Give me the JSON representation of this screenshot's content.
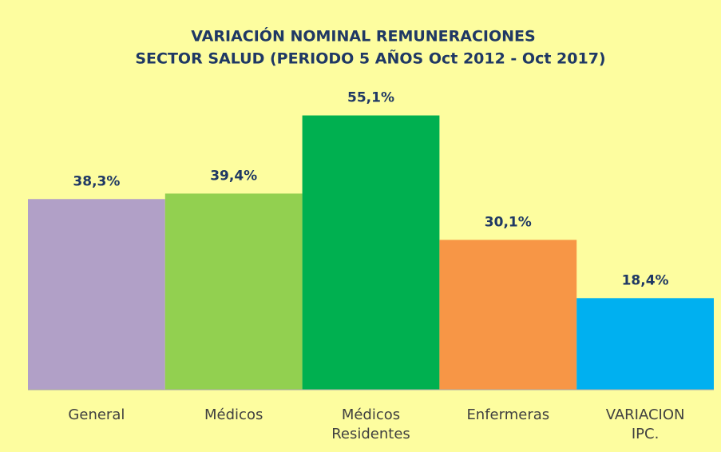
{
  "chart_data": {
    "type": "bar",
    "title": "VARIACIÓN NOMINAL REMUNERACIONES",
    "subtitle": "SECTOR SALUD (PERIODO 5 AÑOS Oct 2012 - Oct 2017)",
    "categories": [
      "General",
      "Médicos",
      "Médicos Residentes",
      "Enfermeras",
      "VARIACION IPC."
    ],
    "values": [
      38.3,
      39.4,
      55.1,
      30.1,
      18.4
    ],
    "value_labels": [
      "38,3%",
      "39,4%",
      "55,1%",
      "30,1%",
      "18,4%"
    ],
    "colors": [
      "#b1a0c7",
      "#92d050",
      "#00b050",
      "#f79646",
      "#00b0f0"
    ],
    "ylim": [
      0,
      60
    ]
  }
}
